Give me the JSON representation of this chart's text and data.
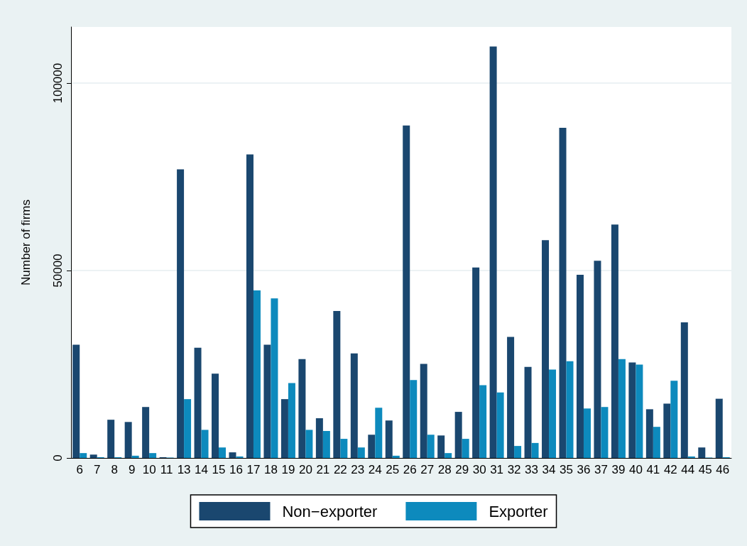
{
  "chart_data": {
    "type": "bar",
    "ylabel": "Number of firms",
    "categories": [
      "6",
      "7",
      "8",
      "9",
      "10",
      "11",
      "13",
      "14",
      "15",
      "16",
      "17",
      "18",
      "19",
      "20",
      "21",
      "22",
      "23",
      "24",
      "25",
      "26",
      "27",
      "28",
      "29",
      "30",
      "31",
      "32",
      "33",
      "34",
      "35",
      "36",
      "37",
      "39",
      "40",
      "41",
      "42",
      "44",
      "45",
      "46"
    ],
    "series": [
      {
        "name": "Non−exporter",
        "color": "#1a476f",
        "values": [
          30200,
          900,
          10200,
          9600,
          13600,
          200,
          77000,
          29400,
          22500,
          1500,
          81000,
          30200,
          15700,
          26400,
          10600,
          39200,
          27900,
          6200,
          10000,
          88700,
          25100,
          6000,
          12300,
          50800,
          109800,
          32300,
          24300,
          58100,
          88100,
          48900,
          52600,
          62300,
          25500,
          13000,
          14500,
          36200,
          2800,
          15800
        ]
      },
      {
        "name": "Exporter",
        "color": "#0d8abd",
        "values": [
          1300,
          200,
          200,
          600,
          1300,
          100,
          15700,
          7500,
          2800,
          400,
          44700,
          42600,
          20000,
          7500,
          7200,
          5100,
          2800,
          13400,
          600,
          20800,
          6200,
          1300,
          5100,
          19400,
          17500,
          3200,
          4000,
          23600,
          25800,
          13200,
          13600,
          26400,
          24900,
          8300,
          20600,
          400,
          100,
          200
        ]
      }
    ],
    "ylim": [
      0,
      115000
    ],
    "yticks": [
      0,
      50000,
      100000
    ],
    "grid": "y",
    "legend": "bottom"
  }
}
